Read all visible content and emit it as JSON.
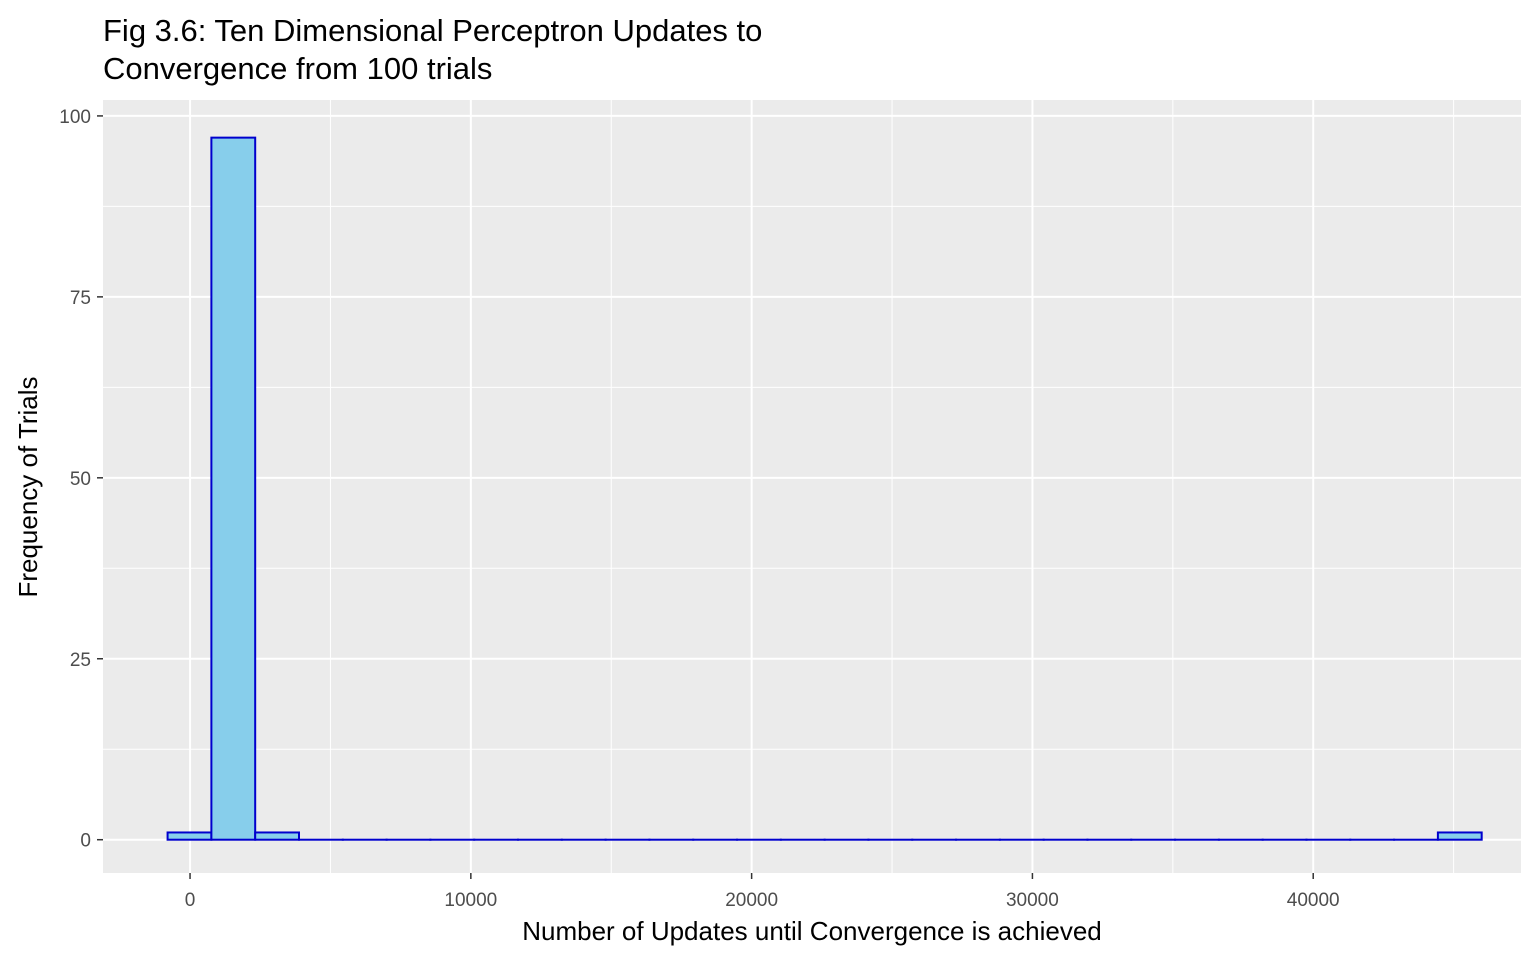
{
  "chart_data": {
    "type": "bar",
    "title_lines": [
      "Fig 3.6: Ten Dimensional Perceptron Updates to",
      "Convergence from 100 trials"
    ],
    "xlabel": "Number of Updates until Convergence is achieved",
    "ylabel": "Frequency of Trials",
    "xlim": [
      -3100,
      47400
    ],
    "ylim": [
      -4.6,
      102.2
    ],
    "x_major_ticks": [
      0,
      10000,
      20000,
      30000,
      40000
    ],
    "x_tick_labels": [
      "0",
      "10000",
      "20000",
      "30000",
      "40000"
    ],
    "x_minor_ticks": [
      5000,
      15000,
      25000,
      35000,
      45000
    ],
    "y_major_ticks": [
      0,
      25,
      50,
      75,
      100
    ],
    "y_tick_labels": [
      "0",
      "25",
      "50",
      "75",
      "100"
    ],
    "y_minor_ticks": [
      12.5,
      37.5,
      62.5,
      87.5
    ],
    "bin_start": -800,
    "bin_width": 1560,
    "bin_counts": [
      1,
      97,
      1,
      0,
      0,
      0,
      0,
      0,
      0,
      0,
      0,
      0,
      0,
      0,
      0,
      0,
      0,
      0,
      0,
      0,
      0,
      0,
      0,
      0,
      0,
      0,
      0,
      0,
      0,
      1
    ],
    "bar_fill": "#87CEEB",
    "bar_outline": "#0000CD",
    "panel_background": "#EBEBEB",
    "grid": true,
    "grid_color": "#FFFFFF",
    "legend": "none"
  }
}
